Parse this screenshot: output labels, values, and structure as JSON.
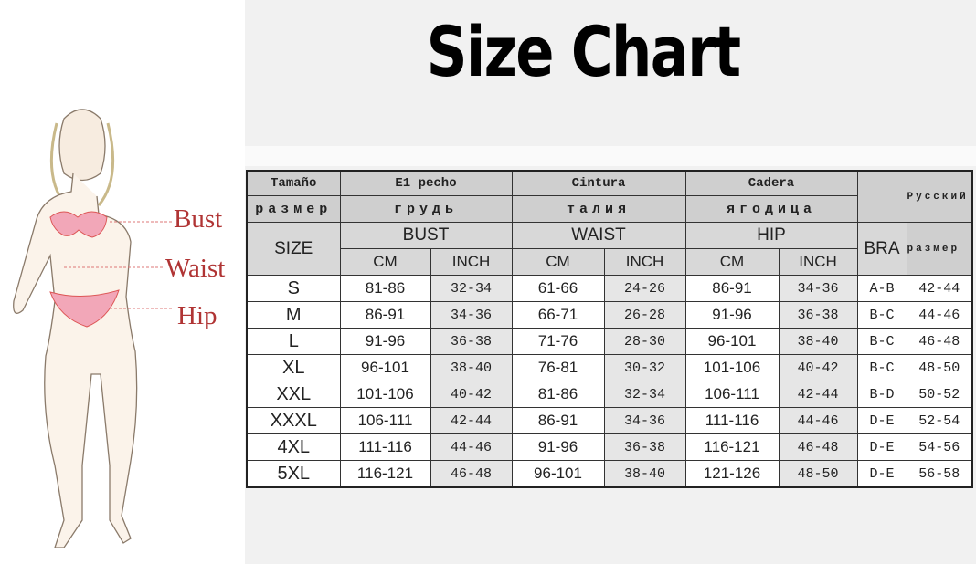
{
  "title": "Size Chart",
  "figure_labels": {
    "bust": "Bust",
    "waist": "Waist",
    "hip": "Hip"
  },
  "header": {
    "tamano": "Tamaño",
    "pecho": "E1 pecho",
    "cintura": "Cintura",
    "cadera": "Cadera",
    "russian": "Русский",
    "razmer": "размер",
    "grud": "грудь",
    "taliya": "талия",
    "yagoditsa": "ягодица",
    "razmer2": "размер",
    "size": "SIZE",
    "bust": "BUST",
    "waist": "WAIST",
    "hip": "HIP",
    "bra": "BRA",
    "cm": "CM",
    "inch": "INCH"
  },
  "rows": [
    [
      "S",
      "81-86",
      "32-34",
      "61-66",
      "24-26",
      "86-91",
      "34-36",
      "A-B",
      "42-44"
    ],
    [
      "M",
      "86-91",
      "34-36",
      "66-71",
      "26-28",
      "91-96",
      "36-38",
      "B-C",
      "44-46"
    ],
    [
      "L",
      "91-96",
      "36-38",
      "71-76",
      "28-30",
      "96-101",
      "38-40",
      "B-C",
      "46-48"
    ],
    [
      "XL",
      "96-101",
      "38-40",
      "76-81",
      "30-32",
      "101-106",
      "40-42",
      "B-C",
      "48-50"
    ],
    [
      "XXL",
      "101-106",
      "40-42",
      "81-86",
      "32-34",
      "106-111",
      "42-44",
      "B-D",
      "50-52"
    ],
    [
      "XXXL",
      "106-111",
      "42-44",
      "86-91",
      "34-36",
      "111-116",
      "44-46",
      "D-E",
      "52-54"
    ],
    [
      "4XL",
      "111-116",
      "44-46",
      "91-96",
      "36-38",
      "116-121",
      "46-48",
      "D-E",
      "54-56"
    ],
    [
      "5XL",
      "116-121",
      "46-48",
      "96-101",
      "38-40",
      "121-126",
      "48-50",
      "D-E",
      "56-58"
    ]
  ]
}
